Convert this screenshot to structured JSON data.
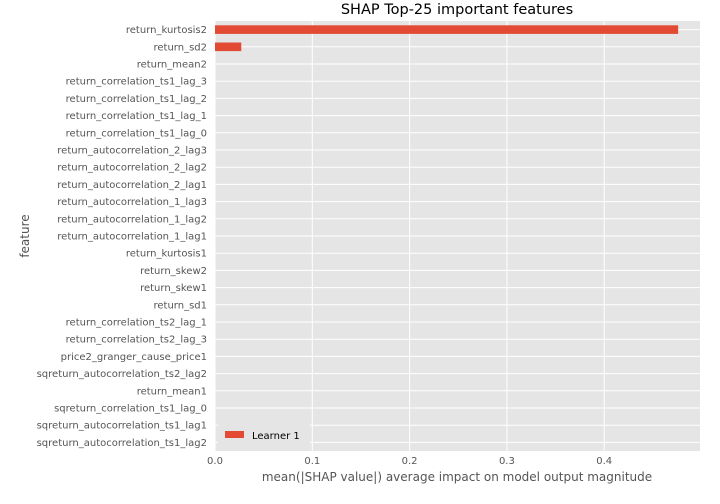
{
  "chart_data": {
    "type": "bar",
    "orientation": "horizontal",
    "title": "SHAP Top-25 important features",
    "xlabel": "mean(|SHAP value|) average impact on model output magnitude",
    "ylabel": "feature",
    "xlim": [
      0,
      0.5
    ],
    "xticks": [
      "0.0",
      "0.1",
      "0.2",
      "0.3",
      "0.4"
    ],
    "grid": true,
    "legend_position": "bottom-left",
    "categories": [
      "return_kurtosis2",
      "return_sd2",
      "return_mean2",
      "return_correlation_ts1_lag_3",
      "return_correlation_ts1_lag_2",
      "return_correlation_ts1_lag_1",
      "return_correlation_ts1_lag_0",
      "return_autocorrelation_2_lag3",
      "return_autocorrelation_2_lag2",
      "return_autocorrelation_2_lag1",
      "return_autocorrelation_1_lag3",
      "return_autocorrelation_1_lag2",
      "return_autocorrelation_1_lag1",
      "return_kurtosis1",
      "return_skew2",
      "return_skew1",
      "return_sd1",
      "return_correlation_ts2_lag_1",
      "return_correlation_ts2_lag_3",
      "price2_granger_cause_price1",
      "sqreturn_autocorrelation_ts2_lag2",
      "return_mean1",
      "sqreturn_correlation_ts1_lag_0",
      "sqreturn_autocorrelation_ts1_lag1",
      "sqreturn_autocorrelation_ts1_lag2"
    ],
    "series": [
      {
        "name": "Learner 1",
        "color": "#E24A33",
        "values": [
          0.476,
          0.027,
          0,
          0,
          0,
          0,
          0,
          0,
          0,
          0,
          0,
          0,
          0,
          0,
          0,
          0,
          0,
          0,
          0,
          0,
          0,
          0,
          0,
          0,
          0
        ]
      }
    ],
    "colors": {
      "plot_background": "#E5E5E5",
      "grid": "#FFFFFF",
      "bar": "#E24A33"
    }
  }
}
